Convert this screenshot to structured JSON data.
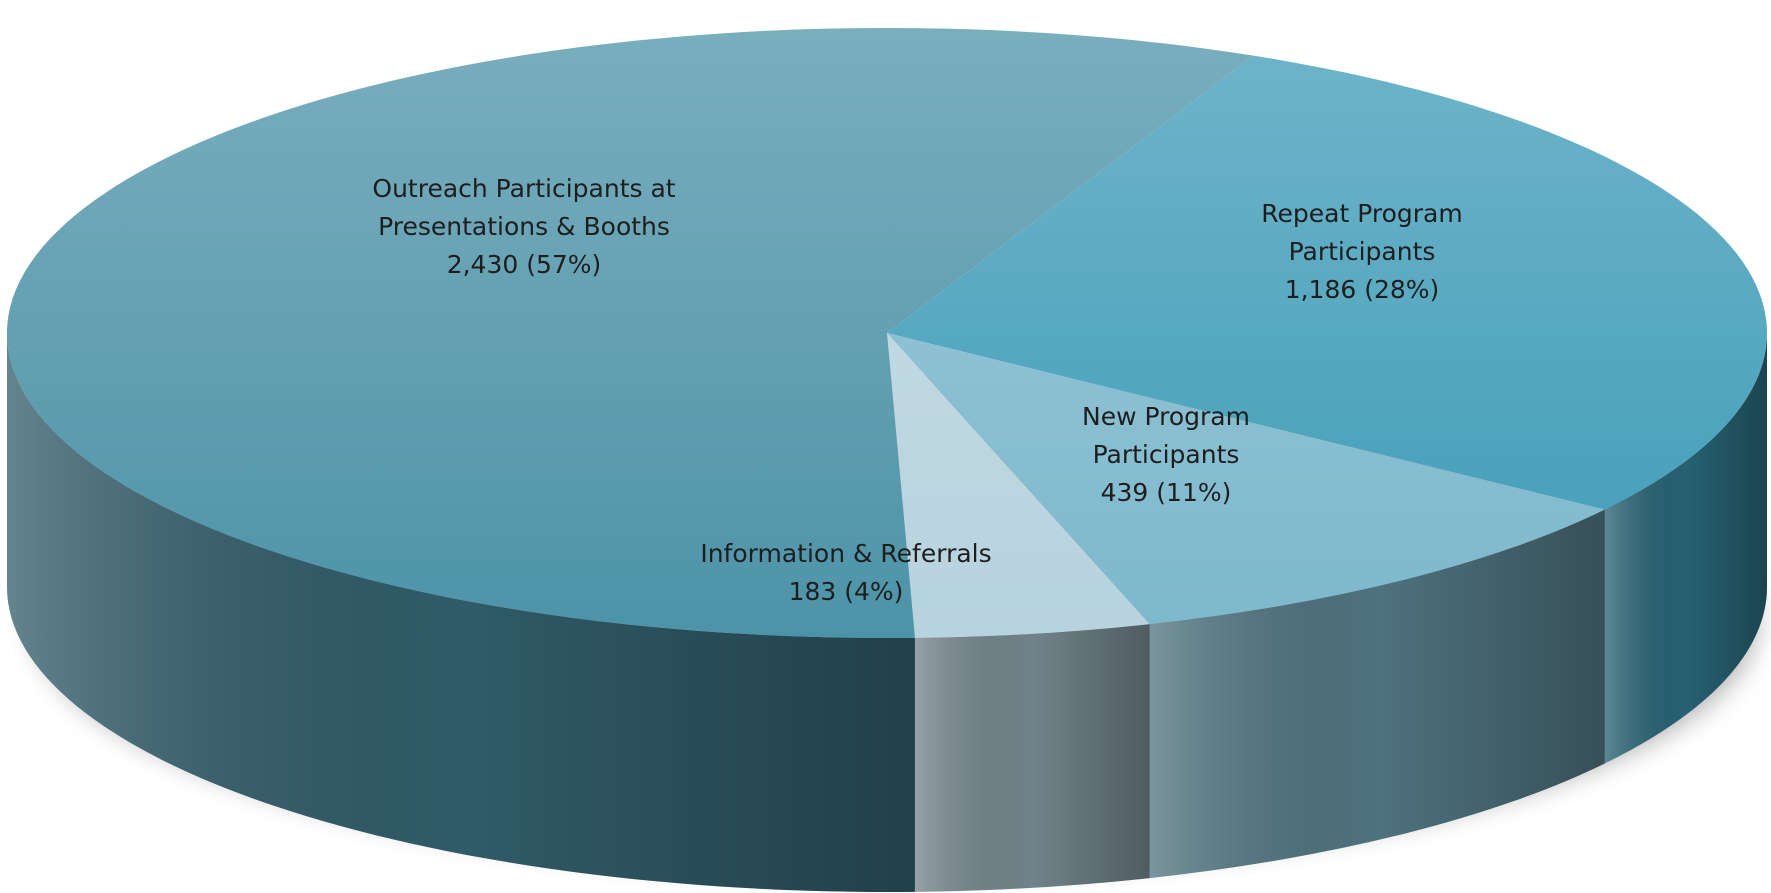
{
  "chart_data": {
    "type": "pie",
    "categories": [
      "Repeat Program Participants",
      "New Program Participants",
      "Information & Referrals",
      "Outreach Participants at Presentations & Booths"
    ],
    "values": [
      1186,
      439,
      183,
      2430
    ],
    "value_labels": [
      "1,186 (28%)",
      "439 (11%)",
      "183 (4%)",
      "2,430 (57%)"
    ],
    "colors": [
      "#3f9cb8",
      "#7db8cc",
      "#b7d3de",
      "#4d93a8"
    ]
  }
}
